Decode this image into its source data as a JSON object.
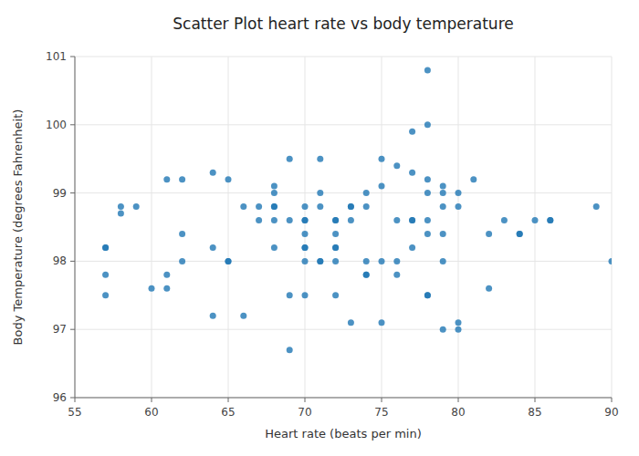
{
  "chart_data": {
    "type": "scatter",
    "title": "Scatter Plot heart rate vs body temperature",
    "xlabel": "Heart rate (beats per min)",
    "ylabel": "Body Temperature (degrees Fahrenheit)",
    "color": "#1f77b4",
    "xlim": [
      55,
      90
    ],
    "ylim": [
      96,
      101
    ],
    "xticks": [
      55,
      60,
      65,
      70,
      75,
      80,
      85,
      90
    ],
    "yticks": [
      96,
      97,
      98,
      99,
      100,
      101
    ],
    "grid": true,
    "x": [
      57,
      57,
      58,
      58,
      59,
      57,
      57,
      60,
      61,
      61,
      61,
      62,
      62,
      62,
      64,
      64,
      64,
      65,
      65,
      65,
      66,
      66,
      67,
      67,
      68,
      68,
      68,
      68,
      68,
      68,
      69,
      69,
      69,
      69,
      70,
      70,
      70,
      70,
      70,
      70,
      70,
      70,
      71,
      71,
      71,
      71,
      71,
      72,
      72,
      72,
      72,
      72,
      72,
      72,
      73,
      73,
      73,
      73,
      74,
      74,
      74,
      74,
      74,
      75,
      75,
      75,
      75,
      76,
      76,
      76,
      76,
      77,
      77,
      77,
      77,
      77,
      78,
      78,
      78,
      78,
      78,
      78,
      78,
      78,
      79,
      79,
      79,
      79,
      79,
      79,
      80,
      80,
      80,
      80,
      81,
      82,
      82,
      83,
      84,
      84,
      85,
      86,
      86,
      89,
      90
    ],
    "values": [
      98.2,
      97.5,
      98.8,
      98.7,
      98.8,
      97.8,
      98.2,
      97.6,
      97.6,
      97.8,
      99.2,
      98.0,
      98.4,
      99.2,
      99.3,
      97.2,
      98.2,
      98.0,
      99.2,
      98.0,
      97.2,
      98.8,
      98.8,
      98.6,
      98.8,
      98.8,
      98.6,
      98.2,
      99.1,
      99.0,
      97.5,
      98.6,
      99.5,
      96.7,
      98.6,
      98.6,
      98.8,
      98.0,
      98.2,
      98.4,
      98.2,
      97.5,
      98.8,
      99.5,
      99.0,
      98.0,
      98.0,
      98.2,
      98.6,
      98.2,
      98.6,
      98.4,
      98.0,
      97.5,
      98.8,
      98.6,
      97.1,
      98.8,
      99.0,
      98.0,
      98.8,
      97.8,
      97.8,
      99.5,
      98.0,
      97.1,
      99.1,
      99.4,
      98.6,
      97.8,
      98.0,
      99.9,
      99.3,
      98.6,
      98.6,
      98.2,
      100.8,
      100.0,
      99.2,
      99.0,
      98.6,
      98.4,
      97.5,
      97.5,
      99.1,
      99.0,
      98.8,
      98.4,
      98.0,
      97.0,
      99.0,
      98.8,
      97.1,
      97.0,
      99.2,
      97.6,
      98.4,
      98.6,
      98.4,
      98.4,
      98.6,
      98.6,
      98.6,
      98.8,
      98.0
    ]
  }
}
